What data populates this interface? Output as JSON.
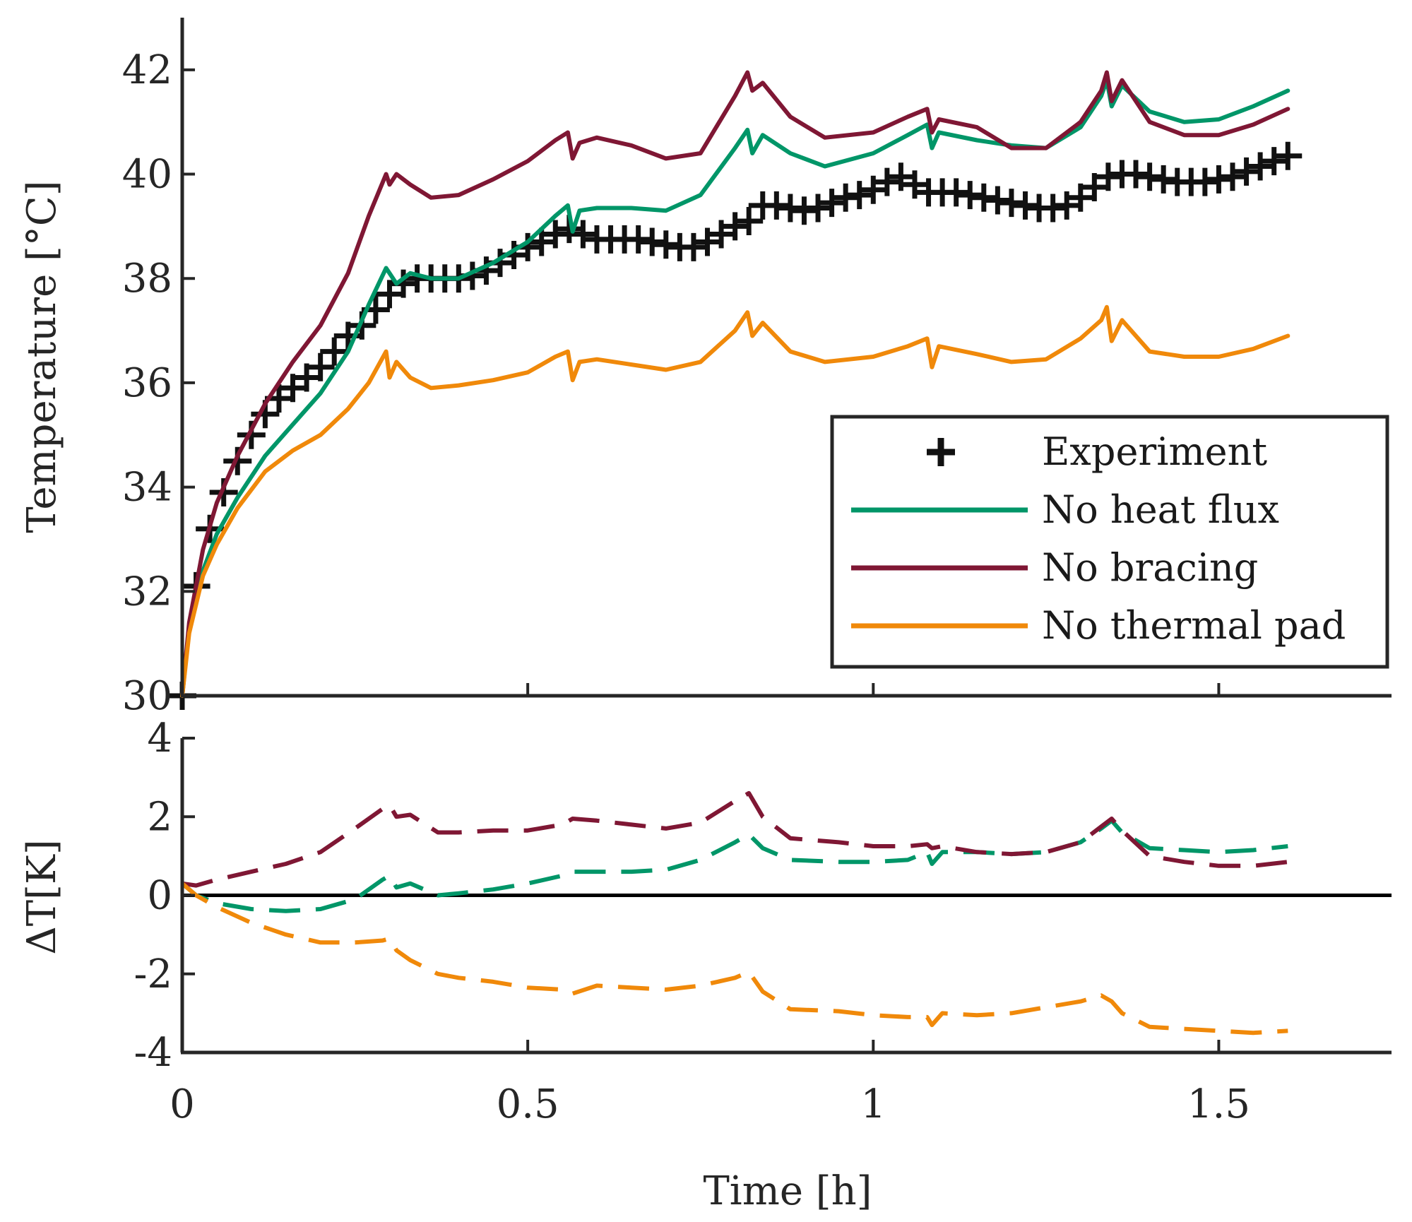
{
  "colors": {
    "experiment": "#111111",
    "no_heat_flux": "#009668",
    "no_bracing": "#7f1734",
    "no_thermal_pad": "#f0890a",
    "axis": "#262626"
  },
  "chart_data": [
    {
      "type": "line",
      "name": "temperature",
      "ylabel": "Temperature [°C]",
      "xlabel": "",
      "xlim": [
        0,
        1.75
      ],
      "ylim": [
        30,
        43
      ],
      "yticks": [
        30,
        32,
        34,
        36,
        38,
        40,
        42
      ],
      "ytick_labels": [
        "30",
        "32",
        "34",
        "36",
        "38",
        "40",
        "42"
      ],
      "xticks": [
        0,
        0.5,
        1,
        1.5
      ],
      "grid": false,
      "legend": {
        "position": "bottom-right",
        "entries": [
          "Experiment",
          "No heat flux",
          "No bracing",
          "No thermal pad"
        ]
      },
      "series": [
        {
          "name": "Experiment",
          "style": "markers-plus",
          "x": [
            0.0,
            0.02,
            0.04,
            0.06,
            0.08,
            0.1,
            0.12,
            0.14,
            0.16,
            0.18,
            0.2,
            0.22,
            0.24,
            0.26,
            0.28,
            0.3,
            0.32,
            0.34,
            0.36,
            0.38,
            0.4,
            0.42,
            0.44,
            0.46,
            0.48,
            0.5,
            0.52,
            0.54,
            0.56,
            0.58,
            0.6,
            0.62,
            0.64,
            0.66,
            0.68,
            0.7,
            0.72,
            0.74,
            0.76,
            0.78,
            0.8,
            0.82,
            0.84,
            0.86,
            0.88,
            0.9,
            0.92,
            0.94,
            0.96,
            0.98,
            1.0,
            1.02,
            1.04,
            1.06,
            1.08,
            1.1,
            1.12,
            1.14,
            1.16,
            1.18,
            1.2,
            1.22,
            1.24,
            1.26,
            1.28,
            1.3,
            1.32,
            1.34,
            1.36,
            1.38,
            1.4,
            1.42,
            1.44,
            1.46,
            1.48,
            1.5,
            1.52,
            1.54,
            1.56,
            1.58,
            1.6
          ],
          "y": [
            30.0,
            32.1,
            33.2,
            33.9,
            34.5,
            35.0,
            35.4,
            35.7,
            35.9,
            36.1,
            36.3,
            36.6,
            36.9,
            37.1,
            37.4,
            37.7,
            37.9,
            38.0,
            38.0,
            38.0,
            38.0,
            38.05,
            38.15,
            38.3,
            38.45,
            38.6,
            38.7,
            38.85,
            38.95,
            38.85,
            38.75,
            38.75,
            38.75,
            38.75,
            38.7,
            38.65,
            38.6,
            38.6,
            38.7,
            38.85,
            39.0,
            39.1,
            39.4,
            39.4,
            39.35,
            39.3,
            39.35,
            39.45,
            39.55,
            39.6,
            39.7,
            39.85,
            39.95,
            39.8,
            39.65,
            39.65,
            39.65,
            39.6,
            39.55,
            39.5,
            39.45,
            39.4,
            39.35,
            39.35,
            39.4,
            39.55,
            39.75,
            39.95,
            40.0,
            40.0,
            39.95,
            39.9,
            39.85,
            39.85,
            39.85,
            39.9,
            39.95,
            40.05,
            40.15,
            40.25,
            40.35
          ]
        },
        {
          "name": "No heat flux",
          "style": "solid",
          "x": [
            0.0,
            0.01,
            0.03,
            0.05,
            0.08,
            0.12,
            0.16,
            0.2,
            0.24,
            0.27,
            0.295,
            0.3,
            0.31,
            0.33,
            0.36,
            0.4,
            0.45,
            0.5,
            0.54,
            0.558,
            0.565,
            0.575,
            0.6,
            0.65,
            0.7,
            0.75,
            0.8,
            0.818,
            0.825,
            0.84,
            0.88,
            0.93,
            1.0,
            1.05,
            1.078,
            1.085,
            1.095,
            1.15,
            1.2,
            1.25,
            1.3,
            1.33,
            1.338,
            1.345,
            1.36,
            1.4,
            1.45,
            1.5,
            1.55,
            1.6
          ],
          "y": [
            30.0,
            31.3,
            32.4,
            33.1,
            33.8,
            34.6,
            35.2,
            35.8,
            36.6,
            37.5,
            38.2,
            38.1,
            37.9,
            38.1,
            38.0,
            38.0,
            38.3,
            38.7,
            39.2,
            39.4,
            38.9,
            39.3,
            39.35,
            39.35,
            39.3,
            39.6,
            40.5,
            40.85,
            40.4,
            40.75,
            40.4,
            40.15,
            40.4,
            40.75,
            40.95,
            40.5,
            40.8,
            40.65,
            40.55,
            40.5,
            40.9,
            41.5,
            41.8,
            41.3,
            41.7,
            41.2,
            41.0,
            41.05,
            41.3,
            41.6
          ]
        },
        {
          "name": "No bracing",
          "style": "solid",
          "x": [
            0.0,
            0.01,
            0.03,
            0.05,
            0.08,
            0.12,
            0.16,
            0.2,
            0.24,
            0.27,
            0.295,
            0.3,
            0.31,
            0.33,
            0.36,
            0.4,
            0.45,
            0.5,
            0.54,
            0.558,
            0.565,
            0.575,
            0.6,
            0.65,
            0.7,
            0.75,
            0.8,
            0.818,
            0.825,
            0.84,
            0.88,
            0.93,
            1.0,
            1.05,
            1.078,
            1.085,
            1.095,
            1.15,
            1.2,
            1.25,
            1.3,
            1.33,
            1.338,
            1.345,
            1.36,
            1.4,
            1.45,
            1.5,
            1.55,
            1.6
          ],
          "y": [
            30.0,
            31.4,
            32.8,
            33.7,
            34.6,
            35.6,
            36.4,
            37.1,
            38.1,
            39.2,
            40.0,
            39.8,
            40.0,
            39.8,
            39.55,
            39.6,
            39.9,
            40.25,
            40.65,
            40.8,
            40.3,
            40.6,
            40.7,
            40.55,
            40.3,
            40.4,
            41.5,
            41.95,
            41.6,
            41.75,
            41.1,
            40.7,
            40.8,
            41.1,
            41.25,
            40.8,
            41.05,
            40.9,
            40.5,
            40.5,
            41.0,
            41.6,
            41.95,
            41.4,
            41.8,
            41.0,
            40.75,
            40.75,
            40.95,
            41.25
          ]
        },
        {
          "name": "No thermal pad",
          "style": "solid",
          "x": [
            0.0,
            0.01,
            0.03,
            0.05,
            0.08,
            0.12,
            0.16,
            0.2,
            0.24,
            0.27,
            0.295,
            0.3,
            0.31,
            0.33,
            0.36,
            0.4,
            0.45,
            0.5,
            0.54,
            0.558,
            0.565,
            0.575,
            0.6,
            0.65,
            0.7,
            0.75,
            0.8,
            0.818,
            0.825,
            0.84,
            0.88,
            0.93,
            1.0,
            1.05,
            1.078,
            1.085,
            1.095,
            1.15,
            1.2,
            1.25,
            1.3,
            1.33,
            1.338,
            1.345,
            1.36,
            1.4,
            1.45,
            1.5,
            1.55,
            1.6
          ],
          "y": [
            30.0,
            31.2,
            32.3,
            32.9,
            33.6,
            34.3,
            34.7,
            35.0,
            35.5,
            36.0,
            36.6,
            36.1,
            36.4,
            36.1,
            35.9,
            35.95,
            36.05,
            36.2,
            36.5,
            36.6,
            36.05,
            36.4,
            36.45,
            36.35,
            36.25,
            36.4,
            37.0,
            37.35,
            36.9,
            37.15,
            36.6,
            36.4,
            36.5,
            36.7,
            36.85,
            36.3,
            36.7,
            36.55,
            36.4,
            36.45,
            36.85,
            37.2,
            37.45,
            36.8,
            37.2,
            36.6,
            36.5,
            36.5,
            36.65,
            36.9
          ]
        }
      ]
    },
    {
      "type": "line",
      "name": "delta",
      "ylabel": "ΔT[K]",
      "xlabel": "Time [h]",
      "xlim": [
        0,
        1.75
      ],
      "ylim": [
        -4,
        4
      ],
      "yticks": [
        -4,
        -2,
        0,
        2,
        4
      ],
      "ytick_labels": [
        "-4",
        "-2",
        "0",
        "2",
        "4"
      ],
      "xticks": [
        0,
        0.5,
        1,
        1.5
      ],
      "xtick_labels": [
        "0",
        "0.5",
        "1",
        "1.5"
      ],
      "zero_line": true,
      "grid": false,
      "series": [
        {
          "name": "No heat flux",
          "style": "dashed",
          "x": [
            0.0,
            0.02,
            0.05,
            0.1,
            0.15,
            0.2,
            0.25,
            0.29,
            0.3,
            0.31,
            0.33,
            0.37,
            0.4,
            0.45,
            0.5,
            0.55,
            0.565,
            0.6,
            0.65,
            0.7,
            0.75,
            0.8,
            0.82,
            0.84,
            0.88,
            0.95,
            1.0,
            1.05,
            1.078,
            1.085,
            1.1,
            1.15,
            1.2,
            1.25,
            1.3,
            1.33,
            1.345,
            1.36,
            1.4,
            1.45,
            1.5,
            1.55,
            1.6
          ],
          "y": [
            0.3,
            0.0,
            -0.2,
            -0.35,
            -0.4,
            -0.35,
            -0.1,
            0.4,
            0.5,
            0.2,
            0.3,
            0.0,
            0.05,
            0.15,
            0.3,
            0.5,
            0.6,
            0.6,
            0.6,
            0.65,
            0.9,
            1.35,
            1.55,
            1.2,
            0.9,
            0.85,
            0.85,
            0.9,
            1.1,
            0.8,
            1.1,
            1.1,
            1.05,
            1.1,
            1.35,
            1.7,
            1.9,
            1.6,
            1.2,
            1.15,
            1.1,
            1.15,
            1.25
          ]
        },
        {
          "name": "No bracing",
          "style": "dashed",
          "x": [
            0.0,
            0.02,
            0.05,
            0.1,
            0.15,
            0.2,
            0.25,
            0.29,
            0.3,
            0.31,
            0.33,
            0.37,
            0.4,
            0.45,
            0.5,
            0.55,
            0.565,
            0.6,
            0.65,
            0.7,
            0.75,
            0.8,
            0.82,
            0.84,
            0.88,
            0.95,
            1.0,
            1.05,
            1.078,
            1.085,
            1.1,
            1.15,
            1.2,
            1.25,
            1.3,
            1.33,
            1.345,
            1.36,
            1.4,
            1.45,
            1.5,
            1.55,
            1.6
          ],
          "y": [
            0.3,
            0.25,
            0.4,
            0.6,
            0.8,
            1.1,
            1.7,
            2.2,
            2.3,
            2.0,
            2.05,
            1.6,
            1.6,
            1.65,
            1.65,
            1.8,
            1.95,
            1.9,
            1.8,
            1.7,
            1.85,
            2.4,
            2.6,
            2.0,
            1.45,
            1.35,
            1.25,
            1.25,
            1.3,
            1.2,
            1.25,
            1.1,
            1.05,
            1.1,
            1.35,
            1.75,
            1.95,
            1.65,
            1.0,
            0.85,
            0.75,
            0.75,
            0.85
          ]
        },
        {
          "name": "No thermal pad",
          "style": "dashed",
          "x": [
            0.0,
            0.02,
            0.05,
            0.1,
            0.15,
            0.2,
            0.25,
            0.29,
            0.3,
            0.31,
            0.33,
            0.37,
            0.4,
            0.45,
            0.5,
            0.55,
            0.565,
            0.6,
            0.65,
            0.7,
            0.75,
            0.8,
            0.82,
            0.84,
            0.88,
            0.95,
            1.0,
            1.05,
            1.078,
            1.085,
            1.1,
            1.15,
            1.2,
            1.25,
            1.3,
            1.33,
            1.345,
            1.36,
            1.4,
            1.45,
            1.5,
            1.55,
            1.6
          ],
          "y": [
            0.3,
            0.0,
            -0.3,
            -0.7,
            -1.0,
            -1.2,
            -1.2,
            -1.15,
            -1.1,
            -1.4,
            -1.65,
            -2.0,
            -2.1,
            -2.2,
            -2.35,
            -2.4,
            -2.5,
            -2.3,
            -2.35,
            -2.4,
            -2.3,
            -2.1,
            -1.95,
            -2.45,
            -2.9,
            -2.95,
            -3.05,
            -3.1,
            -3.1,
            -3.3,
            -3.0,
            -3.05,
            -3.0,
            -2.85,
            -2.7,
            -2.55,
            -2.7,
            -3.0,
            -3.35,
            -3.4,
            -3.45,
            -3.5,
            -3.45
          ]
        }
      ]
    }
  ]
}
